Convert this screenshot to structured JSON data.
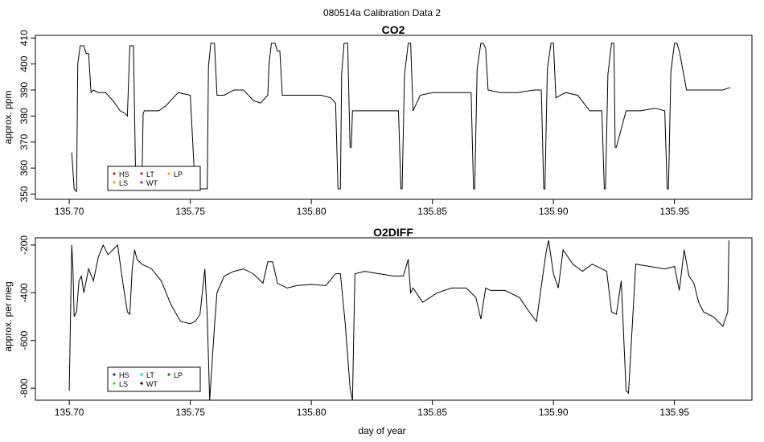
{
  "figure": {
    "title": "080514a   Calibration Data 2",
    "xlabel": "day of year"
  },
  "chart_data": [
    {
      "type": "line",
      "title": "CO2",
      "xlabel": "",
      "ylabel": "approx. ppm",
      "xlim": [
        135.686,
        135.982
      ],
      "ylim": [
        348,
        411
      ],
      "xticks": [
        135.7,
        135.75,
        135.8,
        135.85,
        135.9,
        135.95
      ],
      "xtick_labels": [
        "135.70",
        "135.75",
        "135.80",
        "135.85",
        "135.90",
        "135.95"
      ],
      "yticks": [
        350,
        360,
        370,
        380,
        390,
        400,
        410
      ],
      "ytick_labels": [
        "350",
        "360",
        "370",
        "380",
        "390",
        "400",
        "410"
      ],
      "legend": {
        "placement": "bottom-left",
        "entries": [
          {
            "label": "HS",
            "color": "#cc2222"
          },
          {
            "label": "LS",
            "color": "#f0a000"
          },
          {
            "label": "LT",
            "color": "#a52a2a"
          },
          {
            "label": "WT",
            "color": "#8a2be2"
          },
          {
            "label": "LP",
            "color": "#f0a000"
          }
        ]
      },
      "series": [
        {
          "color": "#000000",
          "x": [
            135.701,
            135.702,
            135.703,
            135.7035,
            135.7045,
            135.706,
            135.707,
            135.708,
            135.709,
            135.71,
            135.712,
            135.715,
            135.718,
            135.721,
            135.723,
            135.724,
            135.725,
            135.726,
            135.7265,
            135.7275,
            135.729,
            135.73,
            135.7305,
            135.731,
            135.733,
            135.737,
            135.74,
            135.745,
            135.75,
            135.752,
            135.754,
            135.755,
            135.756,
            135.757,
            135.7575,
            135.7585,
            135.76,
            135.761,
            135.764,
            135.768,
            135.772,
            135.776,
            135.779,
            135.781,
            135.782,
            135.7825,
            135.7835,
            135.785,
            135.786,
            135.787,
            135.788,
            135.792,
            135.798,
            135.804,
            135.808,
            135.81,
            135.811,
            135.812,
            135.8125,
            135.8135,
            135.815,
            135.816,
            135.8165,
            135.817,
            135.822,
            135.828,
            135.833,
            135.836,
            135.837,
            135.8375,
            135.8385,
            135.84,
            135.841,
            135.842,
            135.845,
            135.85,
            135.856,
            135.862,
            135.866,
            135.867,
            135.8675,
            135.8685,
            135.87,
            135.871,
            135.872,
            135.873,
            135.878,
            135.885,
            135.892,
            135.895,
            135.896,
            135.8965,
            135.8975,
            135.899,
            135.9,
            135.901,
            135.905,
            135.91,
            135.915,
            135.918,
            135.92,
            135.921,
            135.9215,
            135.9225,
            135.924,
            135.925,
            135.9255,
            135.926,
            135.93,
            135.936,
            135.942,
            135.946,
            135.947,
            135.9475,
            135.9485,
            135.95,
            135.951,
            135.952,
            135.955,
            135.96,
            135.965,
            135.97,
            135.973
          ],
          "y": [
            366,
            352,
            351,
            400,
            407,
            407,
            404,
            404,
            389,
            390,
            389,
            389,
            386,
            382,
            381,
            380,
            407,
            407,
            407,
            352,
            352,
            352,
            381,
            382,
            382,
            382,
            384,
            389,
            388,
            352,
            352,
            352,
            352,
            352,
            399,
            408,
            408,
            388,
            388,
            390,
            390,
            386,
            385,
            387,
            388,
            400,
            408,
            408,
            405,
            405,
            388,
            388,
            388,
            388,
            387,
            385,
            352,
            352,
            396,
            408,
            408,
            368,
            368,
            382,
            382,
            382,
            382,
            382,
            352,
            352,
            396,
            408,
            408,
            382,
            388,
            389,
            389,
            389,
            389,
            352,
            352,
            398,
            408,
            408,
            406,
            390,
            389,
            389,
            390,
            390,
            352,
            352,
            398,
            408,
            408,
            387,
            389,
            388,
            382,
            382,
            382,
            352,
            352,
            396,
            408,
            408,
            368,
            368,
            382,
            382,
            383,
            382,
            352,
            352,
            397,
            408,
            408,
            405,
            390,
            390,
            390,
            390,
            391
          ]
        }
      ]
    },
    {
      "type": "line",
      "title": "O2DIFF",
      "xlabel": "day of year",
      "ylabel": "approx. per meg",
      "xlim": [
        135.686,
        135.982
      ],
      "ylim": [
        -850,
        -170
      ],
      "xticks": [
        135.7,
        135.75,
        135.8,
        135.85,
        135.9,
        135.95
      ],
      "xtick_labels": [
        "135.70",
        "135.75",
        "135.80",
        "135.85",
        "135.90",
        "135.95"
      ],
      "yticks": [
        -800,
        -600,
        -400,
        -200
      ],
      "ytick_labels": [
        "-800",
        "-600",
        "-400",
        "-200"
      ],
      "legend": {
        "placement": "bottom-left",
        "entries": [
          {
            "label": "HS",
            "color": "#0022cc"
          },
          {
            "label": "LS",
            "color": "#22dd22"
          },
          {
            "label": "LT",
            "color": "#00dddd"
          },
          {
            "label": "WT",
            "color": "#000000"
          },
          {
            "label": "LP",
            "color": "#0a6e0a"
          }
        ]
      },
      "series": [
        {
          "color": "#000000",
          "x": [
            135.7,
            135.701,
            135.7015,
            135.702,
            135.703,
            135.704,
            135.705,
            135.706,
            135.708,
            135.71,
            135.712,
            135.714,
            135.716,
            135.718,
            135.72,
            135.722,
            135.724,
            135.725,
            135.726,
            135.727,
            135.728,
            135.73,
            135.734,
            135.738,
            135.742,
            135.746,
            135.75,
            135.752,
            135.754,
            135.756,
            135.757,
            135.758,
            135.76,
            135.761,
            135.764,
            135.768,
            135.772,
            135.776,
            135.78,
            135.782,
            135.784,
            135.786,
            135.788,
            135.79,
            135.794,
            135.8,
            135.806,
            135.81,
            135.812,
            135.814,
            135.816,
            135.817,
            135.818,
            135.822,
            135.828,
            135.834,
            135.838,
            135.84,
            135.841,
            135.842,
            135.846,
            135.852,
            135.858,
            135.864,
            135.868,
            135.87,
            135.872,
            135.874,
            135.88,
            135.886,
            135.89,
            135.893,
            135.896,
            135.897,
            135.898,
            135.9,
            135.902,
            135.904,
            135.908,
            135.912,
            135.916,
            135.92,
            135.922,
            135.924,
            135.926,
            135.928,
            135.93,
            135.931,
            135.934,
            135.94,
            135.946,
            135.95,
            135.952,
            135.954,
            135.956,
            135.958,
            135.96,
            135.962,
            135.966,
            135.97,
            135.972,
            135.9725
          ],
          "y": [
            -810,
            -200,
            -300,
            -500,
            -480,
            -350,
            -330,
            -400,
            -300,
            -350,
            -250,
            -200,
            -240,
            -220,
            -200,
            -350,
            -480,
            -490,
            -300,
            -220,
            -260,
            -280,
            -300,
            -350,
            -450,
            -520,
            -530,
            -520,
            -490,
            -300,
            -500,
            -850,
            -540,
            -400,
            -330,
            -310,
            -300,
            -320,
            -360,
            -270,
            -270,
            -360,
            -370,
            -380,
            -370,
            -365,
            -370,
            -320,
            -320,
            -530,
            -800,
            -850,
            -320,
            -310,
            -320,
            -330,
            -330,
            -260,
            -400,
            -380,
            -440,
            -400,
            -380,
            -380,
            -420,
            -510,
            -380,
            -390,
            -390,
            -420,
            -480,
            -520,
            -300,
            -230,
            -180,
            -320,
            -380,
            -220,
            -280,
            -310,
            -280,
            -300,
            -310,
            -480,
            -490,
            -350,
            -810,
            -820,
            -280,
            -290,
            -300,
            -290,
            -390,
            -220,
            -330,
            -360,
            -440,
            -480,
            -500,
            -540,
            -480,
            -180
          ]
        }
      ]
    }
  ]
}
